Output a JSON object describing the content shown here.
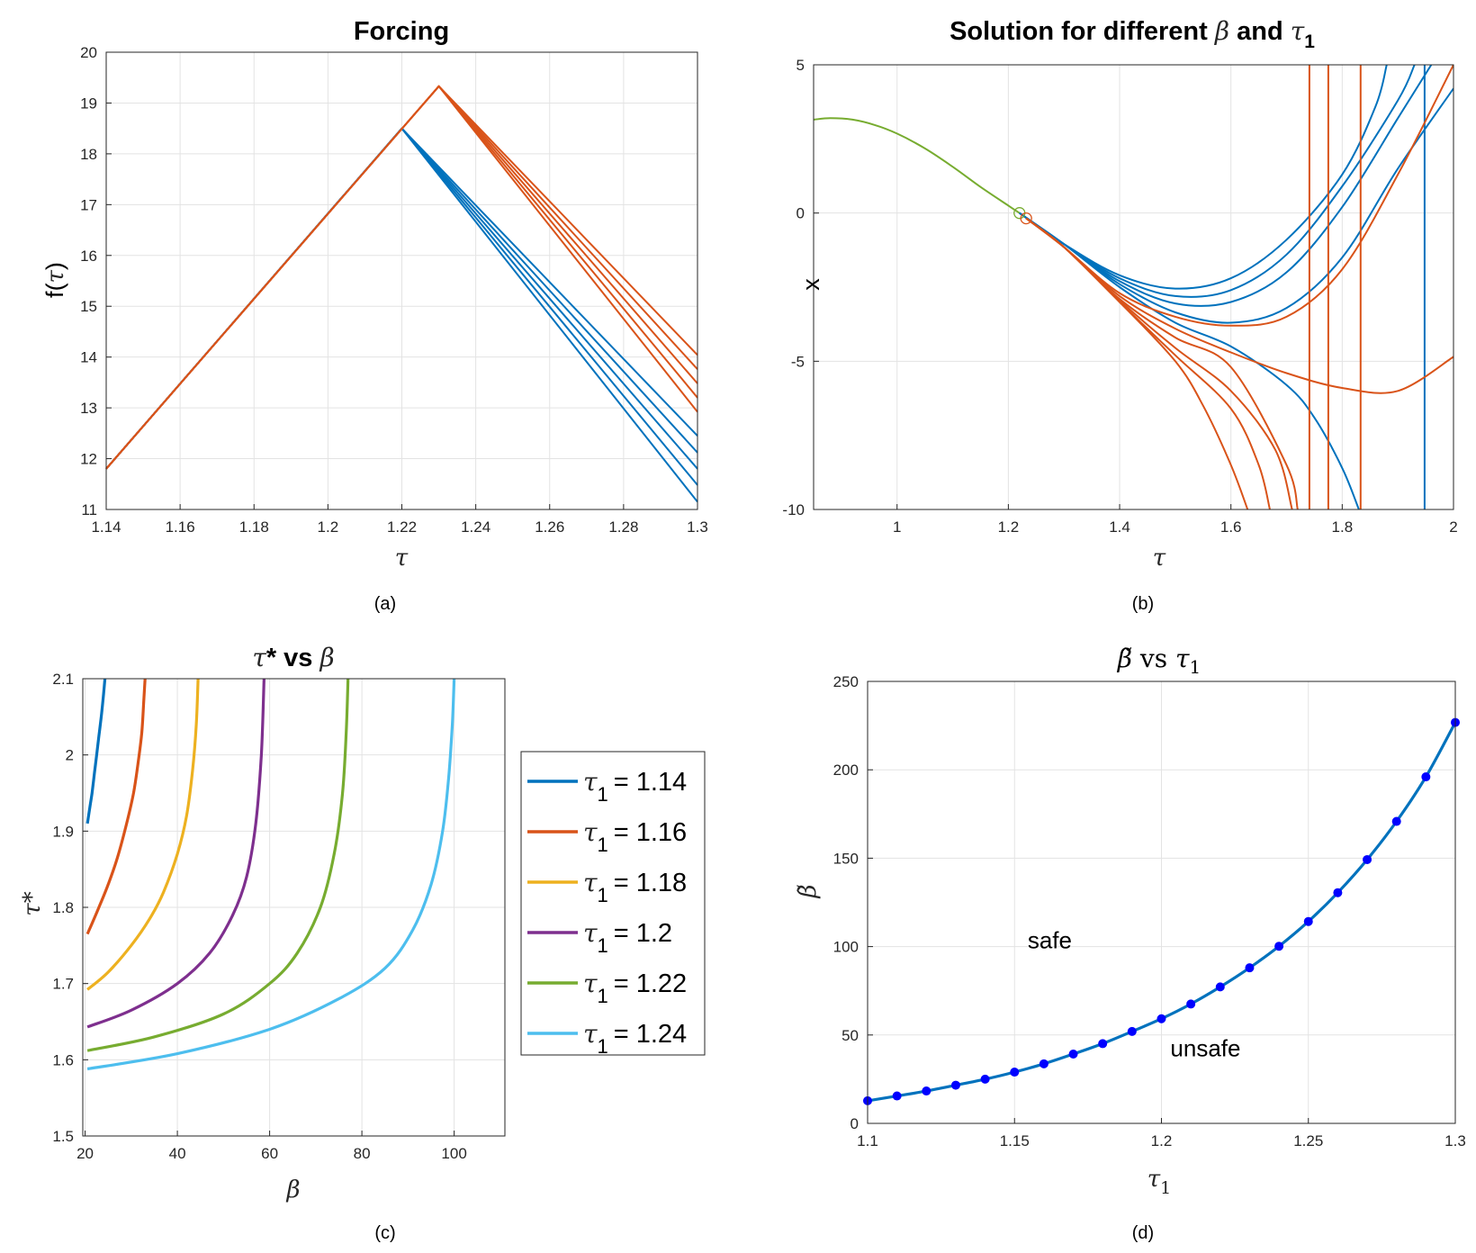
{
  "chart_data": [
    {
      "type": "line",
      "title": "Forcing",
      "xlabel": "τ",
      "ylabel": "f(τ)",
      "caption": "(a)",
      "xlim": [
        1.14,
        1.3
      ],
      "ylim": [
        11,
        20
      ],
      "grid": true,
      "xticks": [
        "1.14",
        "1.16",
        "1.18",
        "1.2",
        "1.22",
        "1.24",
        "1.26",
        "1.28",
        "1.3"
      ],
      "yticks": [
        "11",
        "12",
        "13",
        "14",
        "15",
        "16",
        "17",
        "18",
        "19",
        "20"
      ],
      "series": [
        {
          "color": "#0072BD",
          "x": [
            1.14,
            1.22,
            1.3
          ],
          "y": [
            11.8,
            18.5,
            11.15
          ]
        },
        {
          "color": "#0072BD",
          "x": [
            1.14,
            1.22,
            1.3
          ],
          "y": [
            11.8,
            18.5,
            11.48
          ]
        },
        {
          "color": "#0072BD",
          "x": [
            1.14,
            1.22,
            1.3
          ],
          "y": [
            11.8,
            18.5,
            11.8
          ]
        },
        {
          "color": "#0072BD",
          "x": [
            1.14,
            1.22,
            1.3
          ],
          "y": [
            11.8,
            18.5,
            12.12
          ]
        },
        {
          "color": "#0072BD",
          "x": [
            1.14,
            1.22,
            1.3
          ],
          "y": [
            11.8,
            18.5,
            12.45
          ]
        },
        {
          "color": "#D95319",
          "x": [
            1.14,
            1.23,
            1.3
          ],
          "y": [
            11.8,
            19.33,
            12.92
          ]
        },
        {
          "color": "#D95319",
          "x": [
            1.14,
            1.23,
            1.3
          ],
          "y": [
            11.8,
            19.33,
            13.2
          ]
        },
        {
          "color": "#D95319",
          "x": [
            1.14,
            1.23,
            1.3
          ],
          "y": [
            11.8,
            19.33,
            13.48
          ]
        },
        {
          "color": "#D95319",
          "x": [
            1.14,
            1.23,
            1.3
          ],
          "y": [
            11.8,
            19.33,
            13.76
          ]
        },
        {
          "color": "#D95319",
          "x": [
            1.14,
            1.23,
            1.3
          ],
          "y": [
            11.8,
            19.33,
            14.04
          ]
        }
      ]
    },
    {
      "type": "line",
      "title_parts": [
        "Solution for different ",
        "β",
        " and ",
        "τ",
        "1"
      ],
      "xlabel": "τ",
      "ylabel": "x",
      "caption": "(b)",
      "xlim": [
        0.85,
        2
      ],
      "ylim": [
        -10,
        5
      ],
      "grid": true,
      "xticks": [
        "1",
        "1.2",
        "1.4",
        "1.6",
        "1.8",
        "2"
      ],
      "yticks": [
        "-10",
        "-5",
        "0",
        "5"
      ],
      "markers": [
        {
          "x": 1.22,
          "y": 0.0,
          "color": "#77AC30"
        },
        {
          "x": 1.232,
          "y": -0.18,
          "color": "#D95319"
        }
      ],
      "series": [
        {
          "color": "#77AC30",
          "x": [
            0.85,
            0.88,
            0.92,
            0.96,
            1.0,
            1.05,
            1.1,
            1.15,
            1.2,
            1.22
          ],
          "y": [
            3.15,
            3.2,
            3.15,
            2.97,
            2.68,
            2.18,
            1.56,
            0.88,
            0.25,
            0.0
          ]
        },
        {
          "color": "#0072BD",
          "x": [
            1.22,
            1.3,
            1.4,
            1.5,
            1.6,
            1.7,
            1.8,
            1.86,
            1.88
          ],
          "y": [
            0.0,
            -1.05,
            -2.1,
            -2.55,
            -2.2,
            -0.9,
            1.3,
            3.6,
            5.0
          ]
        },
        {
          "color": "#0072BD",
          "x": [
            1.22,
            1.3,
            1.4,
            1.5,
            1.6,
            1.7,
            1.8,
            1.9,
            1.93
          ],
          "y": [
            0.0,
            -1.05,
            -2.2,
            -2.8,
            -2.6,
            -1.4,
            0.9,
            3.8,
            5.0
          ]
        },
        {
          "color": "#0072BD",
          "x": [
            1.22,
            1.3,
            1.4,
            1.5,
            1.6,
            1.7,
            1.8,
            1.9,
            1.96
          ],
          "y": [
            0.0,
            -1.05,
            -2.3,
            -3.05,
            -3.0,
            -2.0,
            0.2,
            3.2,
            5.0
          ]
        },
        {
          "color": "#0072BD",
          "x": [
            1.22,
            1.3,
            1.4,
            1.5,
            1.6,
            1.7,
            1.8,
            1.9,
            2.0
          ],
          "y": [
            0.0,
            -1.05,
            -2.4,
            -3.35,
            -3.7,
            -3.2,
            -1.5,
            1.5,
            4.2
          ]
        },
        {
          "color": "#0072BD",
          "x": [
            1.22,
            1.3,
            1.4,
            1.5,
            1.6,
            1.7,
            1.75,
            1.8,
            1.83
          ],
          "y": [
            0.0,
            -1.05,
            -2.5,
            -3.7,
            -4.5,
            -5.8,
            -6.9,
            -8.6,
            -10.0
          ]
        },
        {
          "color": "#0072BD",
          "x": [
            1.948,
            1.948
          ],
          "y": [
            -10,
            5
          ]
        },
        {
          "color": "#D95319",
          "x": [
            1.232,
            1.3,
            1.4,
            1.5,
            1.55,
            1.6,
            1.63
          ],
          "y": [
            -0.18,
            -1.15,
            -3.0,
            -5.0,
            -6.5,
            -8.5,
            -10.0
          ]
        },
        {
          "color": "#D95319",
          "x": [
            1.232,
            1.3,
            1.4,
            1.5,
            1.6,
            1.65,
            1.67
          ],
          "y": [
            -0.18,
            -1.15,
            -3.0,
            -4.8,
            -6.6,
            -8.5,
            -10.0
          ]
        },
        {
          "color": "#D95319",
          "x": [
            1.232,
            1.3,
            1.4,
            1.5,
            1.6,
            1.68,
            1.71
          ],
          "y": [
            -0.18,
            -1.15,
            -2.95,
            -4.55,
            -6.0,
            -8.0,
            -10.0
          ]
        },
        {
          "color": "#D95319",
          "x": [
            1.232,
            1.3,
            1.4,
            1.5,
            1.6,
            1.7,
            1.72
          ],
          "y": [
            -0.18,
            -1.15,
            -2.9,
            -4.2,
            -5.2,
            -8.5,
            -10.0
          ]
        },
        {
          "color": "#D95319",
          "x": [
            1.232,
            1.3,
            1.4,
            1.5,
            1.6,
            1.7,
            1.8,
            1.9,
            2.0
          ],
          "y": [
            -0.18,
            -1.15,
            -2.8,
            -3.9,
            -4.7,
            -5.4,
            -5.9,
            -6.0,
            -4.85
          ]
        },
        {
          "color": "#D95319",
          "x": [
            1.232,
            1.3,
            1.4,
            1.5,
            1.6,
            1.7,
            1.8,
            1.9,
            2.0
          ],
          "y": [
            -0.18,
            -1.15,
            -2.7,
            -3.5,
            -3.8,
            -3.5,
            -1.9,
            1.3,
            5.0
          ]
        },
        {
          "color": "#D95319",
          "x": [
            1.741,
            1.741
          ],
          "y": [
            -10,
            5
          ]
        },
        {
          "color": "#D95319",
          "x": [
            1.775,
            1.775
          ],
          "y": [
            -10,
            5
          ]
        },
        {
          "color": "#D95319",
          "x": [
            1.833,
            1.833
          ],
          "y": [
            -10,
            5
          ]
        }
      ]
    },
    {
      "type": "line",
      "title_parts": [
        "τ",
        "*",
        " vs ",
        "β"
      ],
      "xlabel": "β",
      "ylabel": "τ*",
      "caption": "(c)",
      "xlim": [
        19.5,
        111
      ],
      "ylim": [
        1.5,
        2.1
      ],
      "grid": true,
      "legend_position": "outside-right",
      "xticks": [
        "20",
        "40",
        "60",
        "80",
        "100"
      ],
      "yticks": [
        "1.5",
        "1.6",
        "1.7",
        "1.8",
        "1.9",
        "2",
        "2.1"
      ],
      "series": [
        {
          "name": "τ1 = 1.14",
          "legend_sym": "τ",
          "legend_sub": "1",
          "legend_val": "= 1.14",
          "color": "#0072BD",
          "x": [
            20.5,
            21.0,
            21.5,
            22.0,
            22.5,
            23.0,
            23.5,
            24.0,
            24.3
          ],
          "y": [
            1.91,
            1.93,
            1.95,
            1.975,
            2.0,
            2.025,
            2.05,
            2.08,
            2.1
          ]
        },
        {
          "name": "τ1 = 1.16",
          "legend_sym": "τ",
          "legend_sub": "1",
          "legend_val": "= 1.16",
          "color": "#D95319",
          "x": [
            20.5,
            23,
            25,
            27,
            29,
            30.5,
            31.5,
            32.3,
            32.7,
            33.0
          ],
          "y": [
            1.765,
            1.8,
            1.83,
            1.865,
            1.91,
            1.95,
            1.99,
            2.03,
            2.07,
            2.1
          ]
        },
        {
          "name": "τ1 = 1.18",
          "legend_sym": "τ",
          "legend_sub": "1",
          "legend_val": "= 1.18",
          "color": "#EDB120",
          "x": [
            20.5,
            25,
            30,
            34,
            37,
            40,
            42,
            43.3,
            44.1,
            44.5
          ],
          "y": [
            1.692,
            1.715,
            1.75,
            1.785,
            1.82,
            1.87,
            1.92,
            1.98,
            2.04,
            2.1
          ]
        },
        {
          "name": "τ1 = 1.2",
          "legend_sym": "τ",
          "legend_sub": "1",
          "legend_val": "= 1.2",
          "color": "#7E2F8E",
          "x": [
            20.5,
            30,
            40,
            47,
            52,
            55,
            57,
            58.2,
            58.8
          ],
          "y": [
            1.643,
            1.665,
            1.7,
            1.74,
            1.79,
            1.84,
            1.91,
            2.0,
            2.1
          ]
        },
        {
          "name": "τ1 = 1.22",
          "legend_sym": "τ",
          "legend_sub": "1",
          "legend_val": "= 1.22",
          "color": "#77AC30",
          "x": [
            20.5,
            35,
            50,
            60,
            66,
            71,
            74,
            75.8,
            76.6,
            77.0
          ],
          "y": [
            1.612,
            1.63,
            1.66,
            1.7,
            1.74,
            1.8,
            1.87,
            1.95,
            2.03,
            2.1
          ]
        },
        {
          "name": "τ1 = 1.24",
          "legend_sym": "τ",
          "legend_sub": "1",
          "legend_val": "= 1.24",
          "color": "#4DBEEE",
          "x": [
            20.5,
            40,
            60,
            75,
            85,
            91,
            95,
            97.5,
            98.8,
            99.6,
            100.0
          ],
          "y": [
            1.588,
            1.608,
            1.64,
            1.68,
            1.72,
            1.77,
            1.83,
            1.9,
            1.97,
            2.04,
            2.1
          ]
        }
      ]
    },
    {
      "type": "line",
      "title_parts": [
        "β̃",
        " vs ",
        "τ",
        "1"
      ],
      "xlabel": "τ1",
      "ylabel": "β̃",
      "caption": "(d)",
      "xlim": [
        1.1,
        1.3
      ],
      "ylim": [
        0,
        250
      ],
      "grid": true,
      "xticks": [
        "1.1",
        "1.15",
        "1.2",
        "1.25",
        "1.3"
      ],
      "yticks": [
        "0",
        "50",
        "100",
        "150",
        "200",
        "250"
      ],
      "annotations": [
        {
          "text": "safe",
          "x": 1.162,
          "y": 99
        },
        {
          "text": "unsafe",
          "x": 1.215,
          "y": 38
        }
      ],
      "series": [
        {
          "color": "#0072BD",
          "marker_color": "#0000FF",
          "x": [
            1.1,
            1.11,
            1.12,
            1.13,
            1.14,
            1.15,
            1.16,
            1.17,
            1.18,
            1.19,
            1.2,
            1.21,
            1.22,
            1.23,
            1.24,
            1.25,
            1.26,
            1.27,
            1.28,
            1.29,
            1.3
          ],
          "y": [
            12.8,
            15.5,
            18.3,
            21.6,
            25.0,
            29.0,
            33.7,
            39.2,
            45.1,
            52.0,
            59.2,
            67.5,
            77.2,
            88.0,
            100.2,
            114.2,
            130.5,
            149.2,
            170.8,
            196.0,
            226.8
          ]
        }
      ]
    }
  ]
}
